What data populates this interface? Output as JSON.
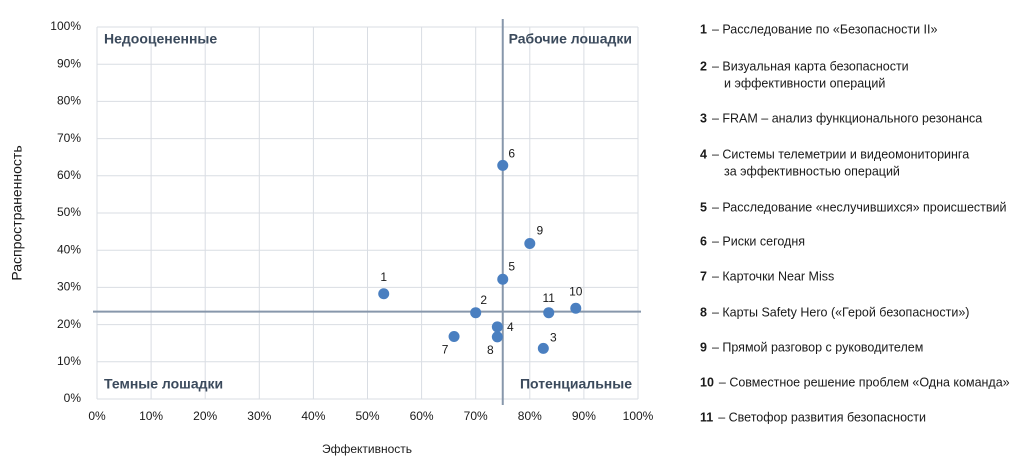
{
  "chart_data": {
    "type": "scatter",
    "x_label": "Эффективность",
    "y_label": "Распространенность",
    "x": [
      53,
      70,
      82.5,
      74,
      75,
      75,
      66,
      74,
      80,
      88.5,
      83.5
    ],
    "y": [
      28.3,
      23.2,
      13.6,
      19.4,
      32.2,
      62.8,
      16.8,
      16.7,
      41.8,
      24.4,
      23.2
    ],
    "point_labels": [
      "1",
      "2",
      "3",
      "4",
      "5",
      "6",
      "7",
      "8",
      "9",
      "10",
      "11"
    ],
    "color": "#4a7fc0",
    "xlim": [
      0,
      100
    ],
    "ylim": [
      0,
      100
    ],
    "xticks": [
      {
        "value": 0,
        "label": "0%"
      },
      {
        "value": 10,
        "label": "10%"
      },
      {
        "value": 20,
        "label": "20%"
      },
      {
        "value": 30,
        "label": "30%"
      },
      {
        "value": 40,
        "label": "40%"
      },
      {
        "value": 50,
        "label": "50%"
      },
      {
        "value": 60,
        "label": "60%"
      },
      {
        "value": 70,
        "label": "70%"
      },
      {
        "value": 80,
        "label": "80%"
      },
      {
        "value": 90,
        "label": "90%"
      },
      {
        "value": 100,
        "label": "100%"
      }
    ],
    "yticks": [
      {
        "value": 0,
        "label": "0%"
      },
      {
        "value": 10,
        "label": "10%"
      },
      {
        "value": 20,
        "label": "20%"
      },
      {
        "value": 30,
        "label": "30%"
      },
      {
        "value": 40,
        "label": "40%"
      },
      {
        "value": 50,
        "label": "50%"
      },
      {
        "value": 60,
        "label": "60%"
      },
      {
        "value": 70,
        "label": "70%"
      },
      {
        "value": 80,
        "label": "80%"
      },
      {
        "value": 90,
        "label": "90%"
      },
      {
        "value": 100,
        "label": "100%"
      }
    ],
    "grid": true,
    "x_divider": 75,
    "y_divider": 23.5,
    "quadrants": [
      "Недооцененные",
      "Рабочие лошадки",
      "Темные лошадки",
      "Потенциальные"
    ],
    "legend_items": [
      {
        "number": "1",
        "lines": [
          "– Расследование по «Безопасности II»"
        ]
      },
      {
        "number": "2",
        "lines": [
          "– Визуальная карта безопасности",
          "и эффективности операций"
        ]
      },
      {
        "number": "3",
        "lines": [
          "– FRAM – анализ функционального резонанса"
        ]
      },
      {
        "number": "4",
        "lines": [
          "– Системы телеметрии и видеомониторинга",
          "за эффективностью операций"
        ]
      },
      {
        "number": "5",
        "lines": [
          "– Расследование «неслучившихся» происшествий"
        ]
      },
      {
        "number": "6",
        "lines": [
          "– Риски сегодня"
        ]
      },
      {
        "number": "7",
        "lines": [
          "– Карточки Near Miss"
        ]
      },
      {
        "number": "8",
        "lines": [
          "– Карты Safety Hero («Герой безопасности»)"
        ]
      },
      {
        "number": "9",
        "lines": [
          "– Прямой разговор с руководителем"
        ]
      },
      {
        "number": "10",
        "lines": [
          "– Совместное решение проблем «Одна команда»"
        ]
      },
      {
        "number": "11",
        "lines": [
          "– Светофор развития безопасности"
        ]
      }
    ]
  }
}
